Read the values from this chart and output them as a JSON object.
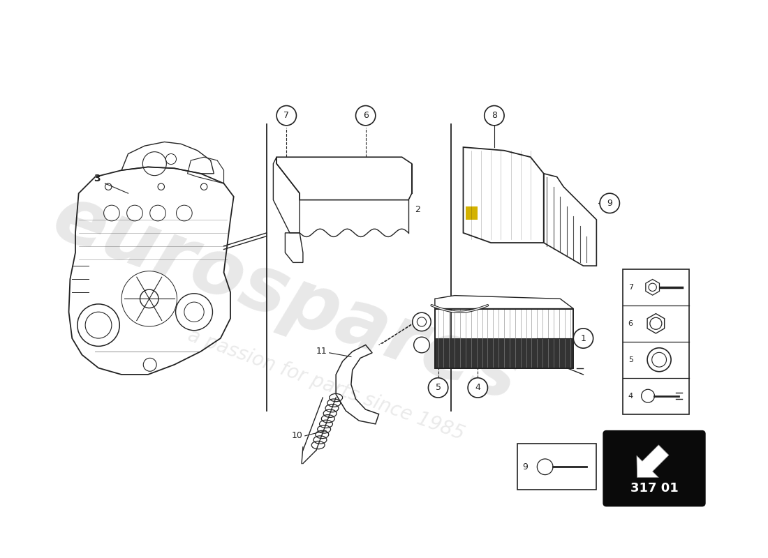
{
  "bg_color": "#ffffff",
  "line_color": "#222222",
  "lw_main": 1.0,
  "watermark1": "eurospares",
  "watermark2": "a passion for parts since 1985",
  "diagram_code": "317 01",
  "wm_color": "#cccccc",
  "yellow": "#d4b200"
}
